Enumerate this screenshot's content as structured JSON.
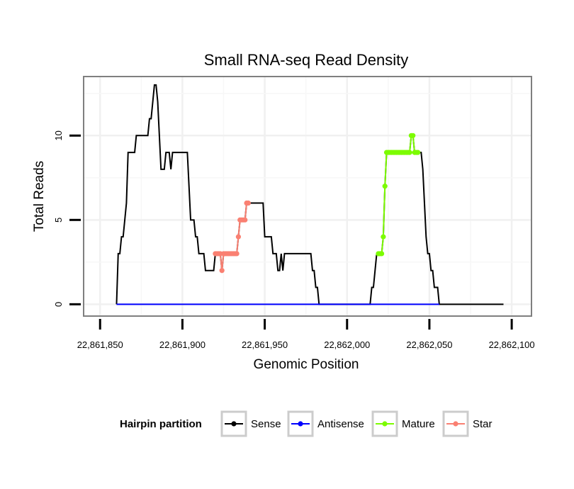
{
  "chart_data": {
    "type": "line",
    "title": "Small RNA-seq Read Density",
    "xlabel": "Genomic Position",
    "ylabel": "Total Reads",
    "xlim": [
      22861840,
      22862112
    ],
    "ylim": [
      -0.7,
      13.5
    ],
    "x_ticks": [
      22861850,
      22861900,
      22861950,
      22862000,
      22862050,
      22862100
    ],
    "x_tick_labels": [
      "22,861,850",
      "22,861,900",
      "22,861,950",
      "22,862,000",
      "22,862,050",
      "22,862,100"
    ],
    "y_ticks": [
      0,
      5,
      10
    ],
    "y_tick_labels": [
      "0",
      "5",
      "10"
    ],
    "grid": true,
    "legend": {
      "title": "Hairpin partition",
      "position": "bottom",
      "entries": [
        {
          "name": "Sense",
          "color": "#000000"
        },
        {
          "name": "Antisense",
          "color": "#0000ff"
        },
        {
          "name": "Mature",
          "color": "#7cfc00"
        },
        {
          "name": "Star",
          "color": "#fa8072"
        }
      ]
    },
    "series": [
      {
        "name": "Sense",
        "color": "#000000",
        "markers": false,
        "points": [
          [
            22861860,
            0
          ],
          [
            22861861,
            3
          ],
          [
            22861862,
            3
          ],
          [
            22861863,
            4
          ],
          [
            22861864,
            4
          ],
          [
            22861865,
            5
          ],
          [
            22861866,
            6
          ],
          [
            22861867,
            9
          ],
          [
            22861868,
            9
          ],
          [
            22861869,
            9
          ],
          [
            22861870,
            9
          ],
          [
            22861871,
            9
          ],
          [
            22861872,
            10
          ],
          [
            22861873,
            10
          ],
          [
            22861874,
            10
          ],
          [
            22861875,
            10
          ],
          [
            22861876,
            10
          ],
          [
            22861877,
            10
          ],
          [
            22861878,
            10
          ],
          [
            22861879,
            10
          ],
          [
            22861880,
            11
          ],
          [
            22861881,
            11
          ],
          [
            22861882,
            12
          ],
          [
            22861883,
            13
          ],
          [
            22861884,
            13
          ],
          [
            22861885,
            12
          ],
          [
            22861886,
            10
          ],
          [
            22861887,
            8
          ],
          [
            22861888,
            8
          ],
          [
            22861889,
            8
          ],
          [
            22861890,
            9
          ],
          [
            22861891,
            9
          ],
          [
            22861892,
            9
          ],
          [
            22861893,
            8
          ],
          [
            22861894,
            9
          ],
          [
            22861895,
            9
          ],
          [
            22861896,
            9
          ],
          [
            22861897,
            9
          ],
          [
            22861898,
            9
          ],
          [
            22861899,
            9
          ],
          [
            22861900,
            9
          ],
          [
            22861901,
            9
          ],
          [
            22861902,
            9
          ],
          [
            22861903,
            9
          ],
          [
            22861904,
            7
          ],
          [
            22861905,
            5
          ],
          [
            22861906,
            5
          ],
          [
            22861907,
            5
          ],
          [
            22861908,
            4
          ],
          [
            22861909,
            4
          ],
          [
            22861910,
            3
          ],
          [
            22861911,
            3
          ],
          [
            22861912,
            3
          ],
          [
            22861913,
            3
          ],
          [
            22861914,
            2
          ],
          [
            22861915,
            2
          ],
          [
            22861916,
            2
          ],
          [
            22861917,
            2
          ],
          [
            22861918,
            2
          ],
          [
            22861919,
            2
          ],
          [
            22861920,
            3
          ],
          [
            22861921,
            3
          ],
          [
            22861922,
            3
          ],
          [
            22861923,
            3
          ],
          [
            22861924,
            2
          ],
          [
            22861925,
            3
          ],
          [
            22861926,
            3
          ],
          [
            22861927,
            3
          ],
          [
            22861928,
            3
          ],
          [
            22861929,
            3
          ],
          [
            22861930,
            3
          ],
          [
            22861931,
            3
          ],
          [
            22861932,
            3
          ],
          [
            22861933,
            3
          ],
          [
            22861934,
            4
          ],
          [
            22861935,
            5
          ],
          [
            22861936,
            5
          ],
          [
            22861937,
            5
          ],
          [
            22861938,
            5
          ],
          [
            22861939,
            6
          ],
          [
            22861940,
            6
          ],
          [
            22861941,
            6
          ],
          [
            22861942,
            6
          ],
          [
            22861943,
            6
          ],
          [
            22861944,
            6
          ],
          [
            22861945,
            6
          ],
          [
            22861946,
            6
          ],
          [
            22861947,
            6
          ],
          [
            22861948,
            6
          ],
          [
            22861949,
            6
          ],
          [
            22861950,
            4
          ],
          [
            22861951,
            4
          ],
          [
            22861952,
            4
          ],
          [
            22861953,
            4
          ],
          [
            22861954,
            4
          ],
          [
            22861955,
            3
          ],
          [
            22861956,
            3
          ],
          [
            22861957,
            3
          ],
          [
            22861958,
            2
          ],
          [
            22861959,
            2
          ],
          [
            22861960,
            3
          ],
          [
            22861961,
            2
          ],
          [
            22861962,
            3
          ],
          [
            22861963,
            3
          ],
          [
            22861964,
            3
          ],
          [
            22861965,
            3
          ],
          [
            22861966,
            3
          ],
          [
            22861967,
            3
          ],
          [
            22861968,
            3
          ],
          [
            22861969,
            3
          ],
          [
            22861970,
            3
          ],
          [
            22861971,
            3
          ],
          [
            22861972,
            3
          ],
          [
            22861973,
            3
          ],
          [
            22861974,
            3
          ],
          [
            22861975,
            3
          ],
          [
            22861976,
            3
          ],
          [
            22861977,
            3
          ],
          [
            22861978,
            3
          ],
          [
            22861979,
            2
          ],
          [
            22861980,
            2
          ],
          [
            22861981,
            1
          ],
          [
            22861982,
            1
          ],
          [
            22861983,
            0
          ],
          [
            22861985,
            0
          ],
          [
            22861990,
            0
          ],
          [
            22861995,
            0
          ],
          [
            22862000,
            0
          ],
          [
            22862005,
            0
          ],
          [
            22862010,
            0
          ],
          [
            22862014,
            0
          ],
          [
            22862015,
            1
          ],
          [
            22862016,
            1
          ],
          [
            22862017,
            2
          ],
          [
            22862018,
            3
          ],
          [
            22862019,
            3
          ],
          [
            22862020,
            3
          ],
          [
            22862021,
            3
          ],
          [
            22862022,
            4
          ],
          [
            22862023,
            7
          ],
          [
            22862024,
            9
          ],
          [
            22862025,
            9
          ],
          [
            22862030,
            9
          ],
          [
            22862035,
            9
          ],
          [
            22862038,
            9
          ],
          [
            22862039,
            10
          ],
          [
            22862040,
            10
          ],
          [
            22862041,
            9
          ],
          [
            22862042,
            9
          ],
          [
            22862043,
            9
          ],
          [
            22862044,
            9
          ],
          [
            22862045,
            9
          ],
          [
            22862046,
            8
          ],
          [
            22862047,
            6
          ],
          [
            22862048,
            4
          ],
          [
            22862049,
            3
          ],
          [
            22862050,
            3
          ],
          [
            22862051,
            2
          ],
          [
            22862052,
            2
          ],
          [
            22862053,
            1
          ],
          [
            22862054,
            1
          ],
          [
            22862055,
            1
          ],
          [
            22862056,
            0
          ],
          [
            22862060,
            0
          ],
          [
            22862070,
            0
          ],
          [
            22862080,
            0
          ],
          [
            22862090,
            0
          ],
          [
            22862095,
            0
          ]
        ]
      },
      {
        "name": "Antisense",
        "color": "#0000ff",
        "markers": false,
        "points": [
          [
            22861860,
            0
          ],
          [
            22862056,
            0
          ]
        ]
      },
      {
        "name": "Mature",
        "color": "#7cfc00",
        "markers": true,
        "points": [
          [
            22862019,
            3
          ],
          [
            22862020,
            3
          ],
          [
            22862021,
            3
          ],
          [
            22862022,
            4
          ],
          [
            22862023,
            7
          ],
          [
            22862024,
            9
          ],
          [
            22862025,
            9
          ],
          [
            22862026,
            9
          ],
          [
            22862027,
            9
          ],
          [
            22862028,
            9
          ],
          [
            22862029,
            9
          ],
          [
            22862030,
            9
          ],
          [
            22862031,
            9
          ],
          [
            22862032,
            9
          ],
          [
            22862033,
            9
          ],
          [
            22862034,
            9
          ],
          [
            22862035,
            9
          ],
          [
            22862036,
            9
          ],
          [
            22862037,
            9
          ],
          [
            22862038,
            9
          ],
          [
            22862039,
            10
          ],
          [
            22862040,
            10
          ],
          [
            22862041,
            9
          ],
          [
            22862042,
            9
          ],
          [
            22862043,
            9
          ]
        ]
      },
      {
        "name": "Star",
        "color": "#fa8072",
        "markers": true,
        "points": [
          [
            22861920,
            3
          ],
          [
            22861921,
            3
          ],
          [
            22861922,
            3
          ],
          [
            22861923,
            3
          ],
          [
            22861924,
            2
          ],
          [
            22861925,
            3
          ],
          [
            22861926,
            3
          ],
          [
            22861927,
            3
          ],
          [
            22861928,
            3
          ],
          [
            22861929,
            3
          ],
          [
            22861930,
            3
          ],
          [
            22861931,
            3
          ],
          [
            22861932,
            3
          ],
          [
            22861933,
            3
          ],
          [
            22861934,
            4
          ],
          [
            22861935,
            5
          ],
          [
            22861936,
            5
          ],
          [
            22861937,
            5
          ],
          [
            22861938,
            5
          ],
          [
            22861939,
            6
          ],
          [
            22861940,
            6
          ]
        ]
      }
    ]
  }
}
